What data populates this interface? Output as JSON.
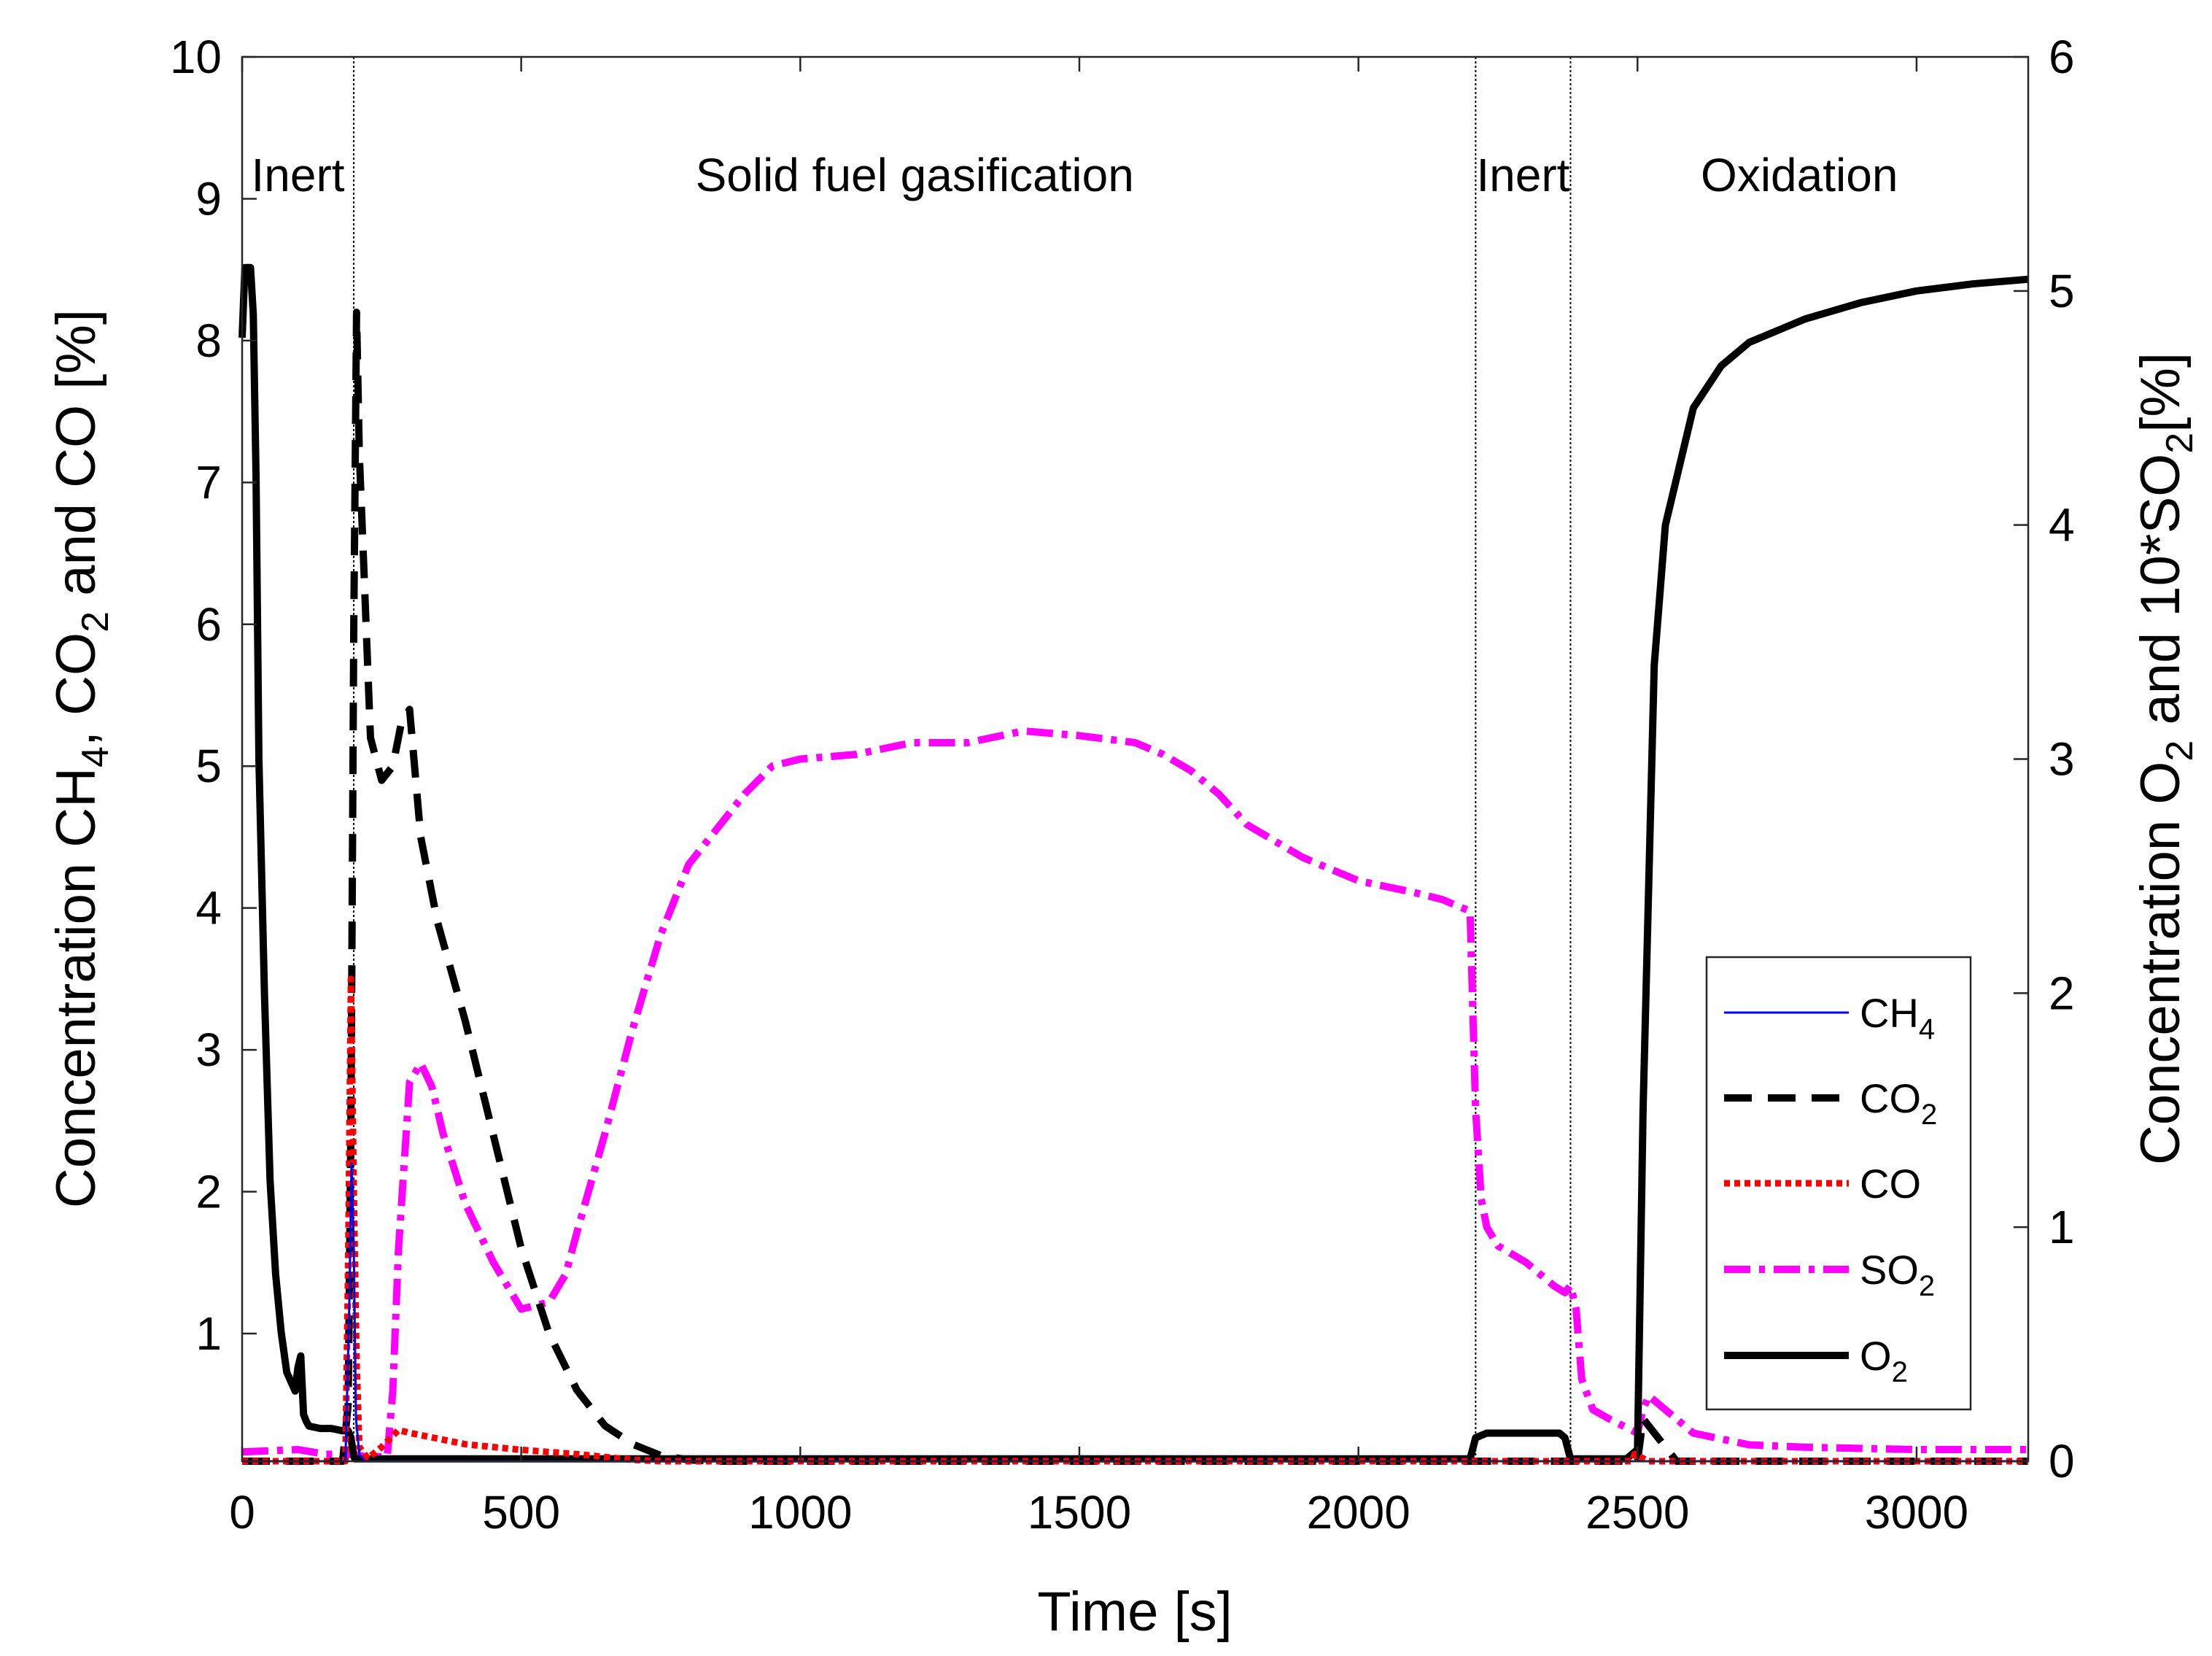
{
  "chart_data": {
    "type": "line",
    "xlabel": "Time [s]",
    "ylabel_left": {
      "text": "Concentration CH",
      "parts": [
        "Concentration CH",
        "4",
        ", CO",
        "2",
        " and CO [%]"
      ]
    },
    "ylabel_right": {
      "text": "Concentration O",
      "parts": [
        "Concentration O",
        "2",
        " and 10*SO",
        "2",
        "[%]"
      ]
    },
    "xlim": [
      0,
      3200
    ],
    "ylim_left": [
      0.1,
      10
    ],
    "ylim_right": [
      0,
      6
    ],
    "x_ticks": [
      0,
      500,
      1000,
      1500,
      2000,
      2500,
      3000
    ],
    "x_tick_labels": [
      "0",
      "500",
      "1000",
      "1500",
      "2000",
      "2500",
      "3000"
    ],
    "y_left_ticks": [
      1,
      2,
      3,
      4,
      5,
      6,
      7,
      8,
      9,
      10
    ],
    "y_left_tick_labels": [
      "1",
      "2",
      "3",
      "4",
      "5",
      "6",
      "7",
      "8",
      "9",
      "10"
    ],
    "y_right_ticks": [
      0,
      1,
      2,
      3,
      4,
      5,
      6
    ],
    "y_right_tick_labels": [
      "0",
      "1",
      "2",
      "3",
      "4",
      "5",
      "6"
    ],
    "phase_boundaries": [
      200,
      2210,
      2380
    ],
    "phases": [
      {
        "label": "Inert",
        "x": 100
      },
      {
        "label": "Solid fuel gasification",
        "x": 1205
      },
      {
        "label": "Inert",
        "x": 2295
      },
      {
        "label": "Oxidation",
        "x": 2790
      }
    ],
    "series": [
      {
        "name": "CH4",
        "label": [
          "CH",
          "4"
        ],
        "axis": "left",
        "color": "#0000ee",
        "style": "solid",
        "x": [
          0,
          185,
          192,
          196,
          200,
          204,
          210,
          220,
          300,
          600,
          1000,
          2200,
          2400,
          2520,
          3200
        ],
        "y": [
          0.1,
          0.1,
          1.2,
          2.2,
          1.6,
          0.4,
          0.15,
          0.1,
          0.1,
          0.1,
          0.1,
          0.1,
          0.1,
          0.1,
          0.1
        ]
      },
      {
        "name": "CO2",
        "label": [
          "CO",
          "2"
        ],
        "axis": "left",
        "color": "#000000",
        "style": "dashed",
        "x": [
          0,
          180,
          190,
          195,
          200,
          205,
          210,
          220,
          230,
          250,
          270,
          285,
          300,
          320,
          350,
          400,
          450,
          500,
          550,
          600,
          650,
          700,
          750,
          800,
          850,
          900,
          1000,
          2500,
          2510,
          2530,
          2550,
          2560,
          2570,
          3200
        ],
        "y": [
          0.1,
          0.1,
          0.5,
          2.5,
          6.0,
          8.2,
          7.2,
          6.2,
          5.2,
          4.9,
          5.0,
          5.3,
          5.4,
          4.5,
          3.9,
          3.2,
          2.4,
          1.6,
          1.0,
          0.6,
          0.35,
          0.22,
          0.14,
          0.11,
          0.1,
          0.1,
          0.1,
          0.1,
          0.4,
          0.3,
          0.2,
          0.15,
          0.1,
          0.1
        ]
      },
      {
        "name": "CO",
        "label": [
          "CO"
        ],
        "axis": "left",
        "color": "#ff0000",
        "style": "dotted",
        "x": [
          0,
          185,
          190,
          195,
          200,
          205,
          210,
          225,
          250,
          280,
          300,
          350,
          400,
          500,
          600,
          650,
          700,
          750,
          800,
          2490,
          2495,
          2510,
          2520,
          3200
        ],
        "y": [
          0.1,
          0.1,
          1.5,
          3.5,
          2.0,
          0.8,
          0.2,
          0.12,
          0.2,
          0.32,
          0.3,
          0.26,
          0.22,
          0.18,
          0.15,
          0.13,
          0.11,
          0.1,
          0.1,
          0.1,
          0.15,
          0.12,
          0.1,
          0.1
        ]
      },
      {
        "name": "SO2",
        "label": [
          "SO",
          "2"
        ],
        "axis": "right",
        "color": "#ff00ff",
        "style": "dashdot",
        "x": [
          0,
          100,
          150,
          200,
          220,
          240,
          260,
          270,
          280,
          300,
          320,
          340,
          360,
          400,
          450,
          500,
          550,
          580,
          600,
          650,
          700,
          750,
          800,
          850,
          900,
          950,
          1000,
          1100,
          1200,
          1300,
          1400,
          1500,
          1600,
          1650,
          1700,
          1750,
          1800,
          1850,
          1900,
          2000,
          2100,
          2150,
          2200,
          2210,
          2220,
          2230,
          2250,
          2300,
          2350,
          2370,
          2380,
          2390,
          2400,
          2420,
          2450,
          2500,
          2510,
          2520,
          2550,
          2600,
          2700,
          2800,
          3000,
          3200
        ],
        "y": [
          0.04,
          0.05,
          0.03,
          0.03,
          0.02,
          0.02,
          0.02,
          0.3,
          0.9,
          1.62,
          1.7,
          1.6,
          1.4,
          1.1,
          0.85,
          0.65,
          0.68,
          0.8,
          0.98,
          1.4,
          1.85,
          2.25,
          2.55,
          2.7,
          2.85,
          2.97,
          3.0,
          3.02,
          3.07,
          3.07,
          3.12,
          3.1,
          3.07,
          3.02,
          2.95,
          2.85,
          2.72,
          2.65,
          2.58,
          2.48,
          2.43,
          2.4,
          2.35,
          1.5,
          1.12,
          1.0,
          0.92,
          0.85,
          0.75,
          0.72,
          0.75,
          0.65,
          0.35,
          0.22,
          0.18,
          0.12,
          0.22,
          0.28,
          0.22,
          0.12,
          0.07,
          0.06,
          0.05,
          0.05
        ]
      },
      {
        "name": "O2",
        "label": [
          "O",
          "2"
        ],
        "axis": "right",
        "color": "#000000",
        "style": "solid",
        "x": [
          0,
          5,
          15,
          20,
          25,
          30,
          40,
          50,
          60,
          70,
          80,
          95,
          100,
          105,
          110,
          115,
          120,
          140,
          160,
          180,
          190,
          195,
          200,
          202,
          250,
          1000,
          2150,
          2200,
          2210,
          2230,
          2300,
          2360,
          2370,
          2380,
          2400,
          2450,
          2480,
          2500,
          2510,
          2530,
          2550,
          2600,
          2650,
          2700,
          2800,
          2900,
          3000,
          3100,
          3200
        ],
        "y": [
          4.8,
          5.1,
          5.1,
          4.9,
          4.2,
          3.0,
          2.0,
          1.2,
          0.8,
          0.55,
          0.38,
          0.3,
          0.4,
          0.45,
          0.2,
          0.17,
          0.15,
          0.14,
          0.14,
          0.13,
          0.13,
          0.1,
          0.02,
          0.01,
          0.01,
          0.01,
          0.01,
          0.01,
          0.1,
          0.12,
          0.12,
          0.12,
          0.1,
          0.01,
          0.01,
          0.01,
          0.01,
          0.05,
          1.5,
          3.4,
          4.0,
          4.5,
          4.68,
          4.78,
          4.88,
          4.95,
          5.0,
          5.03,
          5.05
        ]
      }
    ]
  }
}
